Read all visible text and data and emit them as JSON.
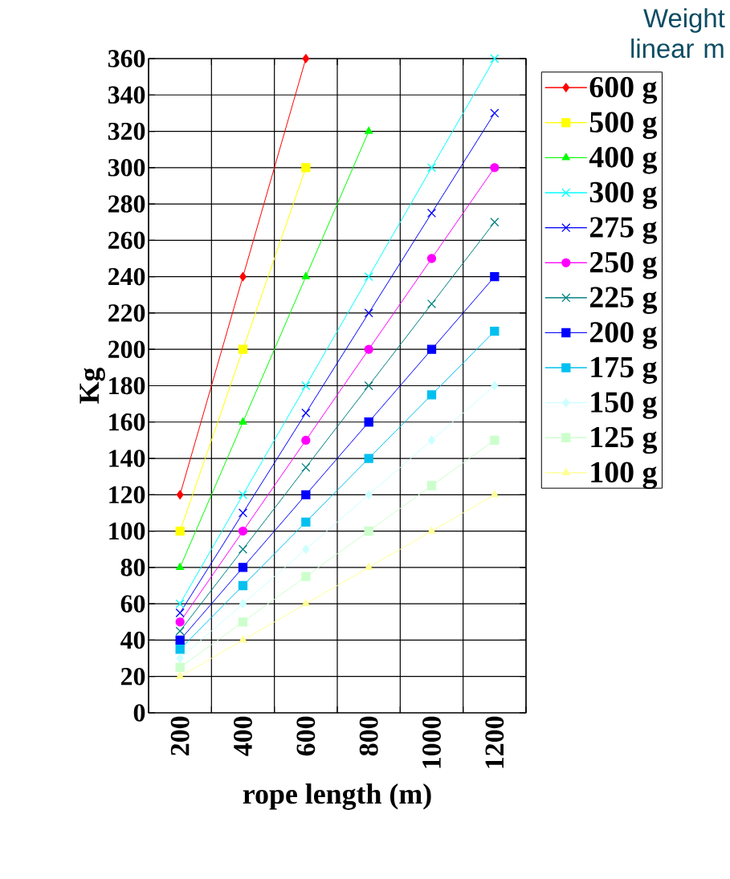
{
  "chart_data": {
    "type": "line",
    "xlabel": "rope length (m)",
    "ylabel": "Kg",
    "legend_title": "Weight linear m",
    "categories": [
      "200",
      "400",
      "600",
      "800",
      "1000",
      "1200"
    ],
    "ylim": [
      0,
      360
    ],
    "yticks": [
      0,
      20,
      40,
      60,
      80,
      100,
      120,
      140,
      160,
      180,
      200,
      220,
      240,
      260,
      280,
      300,
      320,
      340,
      360
    ],
    "grid": true,
    "legend": "right",
    "series": [
      {
        "name": "600 g",
        "color": "#ff0000",
        "marker": "diamond",
        "values": [
          120,
          240,
          360,
          null,
          null,
          null
        ]
      },
      {
        "name": "500 g",
        "color": "#ffff00",
        "marker": "square",
        "values": [
          100,
          200,
          300,
          null,
          null,
          null
        ]
      },
      {
        "name": "400 g",
        "color": "#00ff00",
        "marker": "triangle",
        "values": [
          80,
          160,
          240,
          320,
          null,
          null
        ]
      },
      {
        "name": "300 g",
        "color": "#00ffff",
        "marker": "cross",
        "values": [
          60,
          120,
          180,
          240,
          300,
          360
        ]
      },
      {
        "name": "275 g",
        "color": "#0000ff",
        "marker": "cross",
        "values": [
          55,
          110,
          165,
          220,
          275,
          330
        ]
      },
      {
        "name": "250 g",
        "color": "#ff00ff",
        "marker": "circle",
        "values": [
          50,
          100,
          150,
          200,
          250,
          300
        ]
      },
      {
        "name": "225 g",
        "color": "#008080",
        "marker": "cross",
        "values": [
          45,
          90,
          135,
          180,
          225,
          270
        ]
      },
      {
        "name": "200 g",
        "color": "#0000ff",
        "marker": "square",
        "values": [
          40,
          80,
          120,
          160,
          200,
          240
        ]
      },
      {
        "name": "175 g",
        "color": "#00c0f0",
        "marker": "square",
        "values": [
          35,
          70,
          105,
          140,
          175,
          210
        ]
      },
      {
        "name": "150 g",
        "color": "#ccffff",
        "marker": "diamond",
        "values": [
          30,
          60,
          90,
          120,
          150,
          180
        ]
      },
      {
        "name": "125 g",
        "color": "#ccffcc",
        "marker": "square",
        "values": [
          25,
          50,
          75,
          100,
          125,
          150
        ]
      },
      {
        "name": "100 g",
        "color": "#ffff99",
        "marker": "triangle",
        "values": [
          20,
          40,
          60,
          80,
          100,
          120
        ]
      }
    ]
  }
}
